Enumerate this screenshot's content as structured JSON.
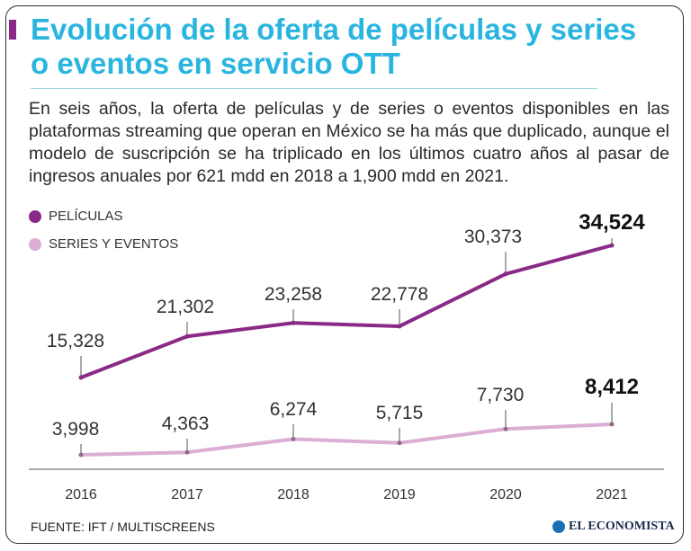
{
  "title": "Evolución de la oferta de películas y series o eventos en servicio OTT",
  "description": "En seis años, la oferta de películas y de series o eventos disponibles en las plataformas streaming que operan en México se ha más que duplicado, aunque el modelo de suscripción se ha triplicado en los últimos cuatro años al pasar de ingresos anuales por 621 mdd en 2018 a 1,900 mdd en 2021.",
  "legend": {
    "peliculas": "PELÍCULAS",
    "series": "SERIES Y EVENTOS"
  },
  "colors": {
    "peliculas": "#8a2a86",
    "series": "#dcaed4",
    "title": "#29b5df"
  },
  "chart_data": {
    "type": "line",
    "categories": [
      "2016",
      "2017",
      "2018",
      "2019",
      "2020",
      "2021"
    ],
    "series": [
      {
        "name": "PELÍCULAS",
        "values": [
          15328,
          21302,
          23258,
          22778,
          30373,
          34524
        ],
        "labels": [
          "15,328",
          "21,302",
          "23,258",
          "22,778",
          "30,373",
          "34,524"
        ]
      },
      {
        "name": "SERIES Y EVENTOS",
        "values": [
          3998,
          4363,
          6274,
          5715,
          7730,
          8412
        ],
        "labels": [
          "3,998",
          "4,363",
          "6,274",
          "5,715",
          "7,730",
          "8,412"
        ]
      }
    ],
    "ylim": [
      0,
      36000
    ],
    "grid": false
  },
  "footer": {
    "source": "FUENTE: IFT / MULTISCREENS",
    "logo": "EL ECONOMISTA"
  }
}
